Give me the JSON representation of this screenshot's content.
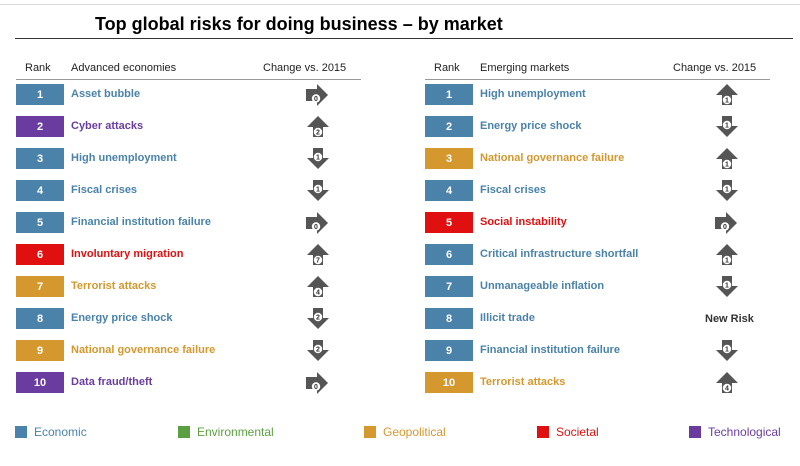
{
  "title": "Top global risks for doing business – by market",
  "colors": {
    "Economic": "#4a82aa",
    "Environmental": "#5c9e42",
    "Geopolitical": "#d4982e",
    "Societal": "#e01010",
    "Technological": "#6a3ca0",
    "arrow": "#555555"
  },
  "chart_data": [
    {
      "type": "table",
      "title": "Advanced economies",
      "columns": [
        "Rank",
        "Advanced economies",
        "Change vs. 2015"
      ],
      "rows": [
        {
          "rank": "1",
          "risk": "Asset bubble",
          "category": "Economic",
          "direction": "right",
          "change": "0"
        },
        {
          "rank": "2",
          "risk": "Cyber attacks",
          "category": "Technological",
          "direction": "up",
          "change": "2"
        },
        {
          "rank": "3",
          "risk": "High unemployment",
          "category": "Economic",
          "direction": "down",
          "change": "1"
        },
        {
          "rank": "4",
          "risk": "Fiscal crises",
          "category": "Economic",
          "direction": "down",
          "change": "1"
        },
        {
          "rank": "5",
          "risk": "Financial institution failure",
          "category": "Economic",
          "direction": "right",
          "change": "0"
        },
        {
          "rank": "6",
          "risk": "Involuntary migration",
          "category": "Societal",
          "direction": "up",
          "change": "7"
        },
        {
          "rank": "7",
          "risk": "Terrorist attacks",
          "category": "Geopolitical",
          "direction": "up",
          "change": "4"
        },
        {
          "rank": "8",
          "risk": "Energy price shock",
          "category": "Economic",
          "direction": "down",
          "change": "2"
        },
        {
          "rank": "9",
          "risk": "National governance failure",
          "category": "Geopolitical",
          "direction": "down",
          "change": "2"
        },
        {
          "rank": "10",
          "risk": "Data fraud/theft",
          "category": "Technological",
          "direction": "right",
          "change": "0"
        }
      ]
    },
    {
      "type": "table",
      "title": "Emerging markets",
      "columns": [
        "Rank",
        "Emerging markets",
        "Change vs. 2015"
      ],
      "rows": [
        {
          "rank": "1",
          "risk": "High unemployment",
          "category": "Economic",
          "direction": "up",
          "change": "1"
        },
        {
          "rank": "2",
          "risk": "Energy price shock",
          "category": "Economic",
          "direction": "down",
          "change": "1"
        },
        {
          "rank": "3",
          "risk": "National governance failure",
          "category": "Geopolitical",
          "direction": "up",
          "change": "1"
        },
        {
          "rank": "4",
          "risk": "Fiscal crises",
          "category": "Economic",
          "direction": "down",
          "change": "1"
        },
        {
          "rank": "5",
          "risk": "Social instability",
          "category": "Societal",
          "direction": "right",
          "change": "0"
        },
        {
          "rank": "6",
          "risk": "Critical infrastructure shortfall",
          "category": "Economic",
          "direction": "up",
          "change": "1"
        },
        {
          "rank": "7",
          "risk": "Unmanageable inflation",
          "category": "Economic",
          "direction": "down",
          "change": "1"
        },
        {
          "rank": "8",
          "risk": "Illicit trade",
          "category": "Economic",
          "direction": "none",
          "change": "New Risk"
        },
        {
          "rank": "9",
          "risk": "Financial institution failure",
          "category": "Economic",
          "direction": "down",
          "change": "1"
        },
        {
          "rank": "10",
          "risk": "Terrorist attacks",
          "category": "Geopolitical",
          "direction": "up",
          "change": "4"
        }
      ]
    }
  ],
  "legend": [
    "Economic",
    "Environmental",
    "Geopolitical",
    "Societal",
    "Technological"
  ]
}
